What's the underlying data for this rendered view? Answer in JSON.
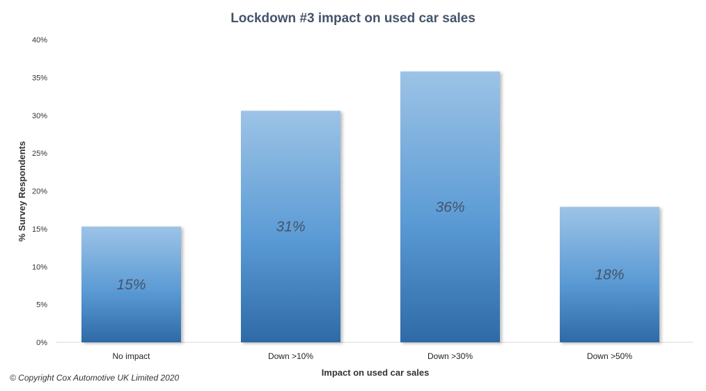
{
  "chart_data": {
    "type": "bar",
    "title": "Lockdown #3 impact on used car sales",
    "xlabel": "Impact on used car sales",
    "ylabel": "% Survey Respondents",
    "categories": [
      "No impact",
      "Down >10%",
      "Down >30%",
      "Down >50%"
    ],
    "values": [
      15.3,
      30.6,
      35.8,
      17.9
    ],
    "data_labels": [
      "15%",
      "31%",
      "36%",
      "18%"
    ],
    "ylim": [
      0,
      40
    ],
    "yticks": [
      0,
      5,
      10,
      15,
      20,
      25,
      30,
      35,
      40
    ],
    "ytick_labels": [
      "0%",
      "5%",
      "10%",
      "15%",
      "20%",
      "25%",
      "30%",
      "35%",
      "40%"
    ],
    "grid": false,
    "legend": "none",
    "colors": {
      "bar_top": "#9dc3e6",
      "bar_mid": "#5b9bd5",
      "bar_bottom": "#2e6aa6",
      "title": "#44546a"
    }
  },
  "footer": {
    "copyright": "© Copyright Cox Automotive UK Limited 2020"
  }
}
